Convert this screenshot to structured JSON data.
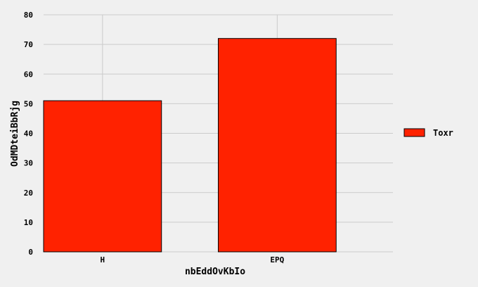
{
  "chart_data": {
    "type": "bar",
    "categories": [
      "H",
      "EPQ"
    ],
    "series": [
      {
        "name": "Toxr",
        "values": [
          51,
          72
        ]
      }
    ],
    "xlabel": "nbEddOvKbIo",
    "ylabel": "OdMDteiBbRjg",
    "ylim": [
      0,
      80
    ],
    "yticks": [
      0,
      10,
      20,
      30,
      40,
      50,
      60,
      70,
      80
    ],
    "grid": true,
    "legend_position": "right",
    "colors": {
      "background": "#f0f0f0",
      "bar": "#ff2200",
      "grid": "#cbcbcb",
      "text": "#000000"
    }
  }
}
